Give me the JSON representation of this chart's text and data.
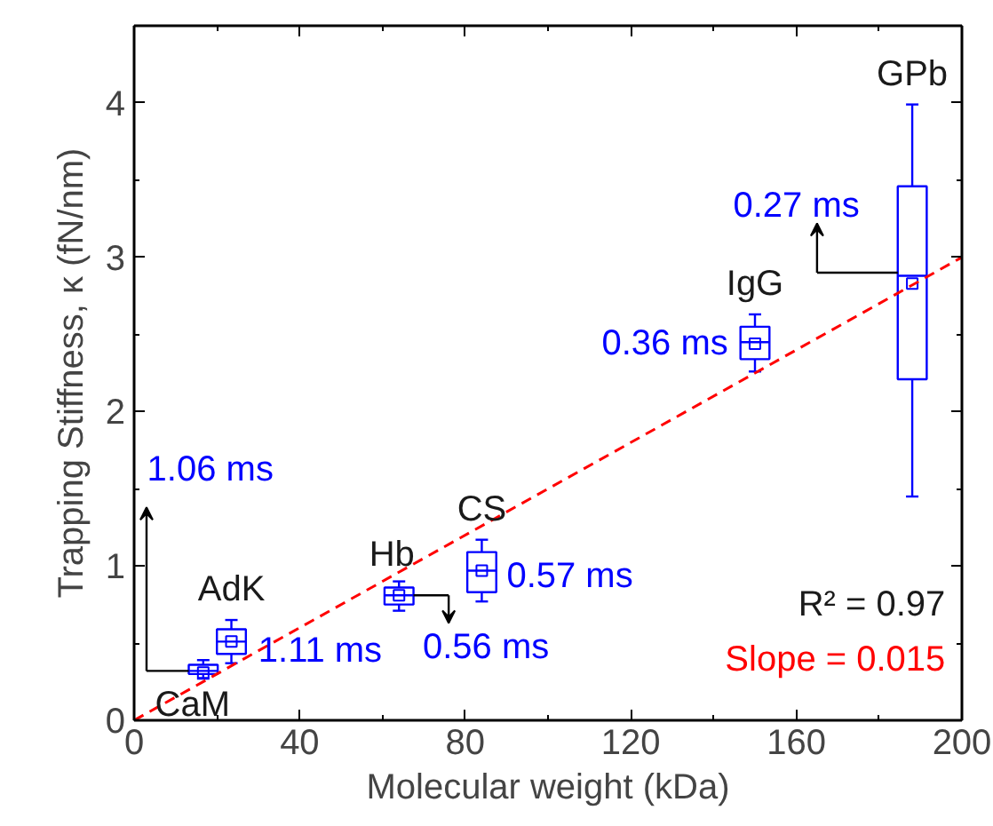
{
  "chart_data": {
    "type": "box",
    "xlabel": "Molecular weight (kDa)",
    "ylabel": "Trapping Stiffness, κ (fN/nm)",
    "xlim": [
      0,
      200
    ],
    "ylim": [
      0,
      4.5
    ],
    "xticks": [
      0,
      40,
      80,
      120,
      160,
      200
    ],
    "yticks": [
      0,
      1,
      2,
      3,
      4
    ],
    "grid": false,
    "series": [
      {
        "color": "#0000ff",
        "x": [
          16.7,
          23.5,
          64,
          84,
          150,
          188
        ],
        "value_labels": [
          "1.06 ms",
          "1.11 ms",
          "0.56 ms",
          "0.57 ms",
          "0.36 ms",
          "0.27 ms"
        ],
        "boxes": [
          {
            "low": 0.27,
            "q1": 0.3,
            "median": 0.32,
            "q3": 0.36,
            "high": 0.39,
            "mean": 0.31
          },
          {
            "low": 0.37,
            "q1": 0.43,
            "median": 0.51,
            "q3": 0.59,
            "high": 0.65,
            "mean": 0.51
          },
          {
            "low": 0.71,
            "q1": 0.75,
            "median": 0.81,
            "q3": 0.86,
            "high": 0.9,
            "mean": 0.81
          },
          {
            "low": 0.77,
            "q1": 0.83,
            "median": 0.97,
            "q3": 1.09,
            "high": 1.17,
            "mean": 0.97
          },
          {
            "low": 2.26,
            "q1": 2.34,
            "median": 2.45,
            "q3": 2.55,
            "high": 2.63,
            "mean": 2.44
          },
          {
            "low": 1.45,
            "q1": 2.21,
            "median": 2.88,
            "q3": 3.46,
            "high": 3.99,
            "mean": 2.83
          }
        ]
      },
      {
        "type": "line",
        "color": "#ff0000",
        "line_style": "dashed",
        "x": [
          0,
          200
        ],
        "values": [
          0,
          3.0
        ]
      }
    ],
    "annotations": [
      {
        "text": "CaM",
        "x": 16.7,
        "y": 0.27
      },
      {
        "text": "AdK",
        "x": 23.5,
        "y": 0.65
      },
      {
        "text": "Hb",
        "x": 64,
        "y": 0.9
      },
      {
        "text": "CS",
        "x": 84,
        "y": 1.17
      },
      {
        "text": "IgG",
        "x": 150,
        "y": 2.63
      },
      {
        "text": "GPb",
        "x": 188,
        "y": 3.99
      },
      "R² = 0.97",
      "Slope = 0.015"
    ]
  }
}
